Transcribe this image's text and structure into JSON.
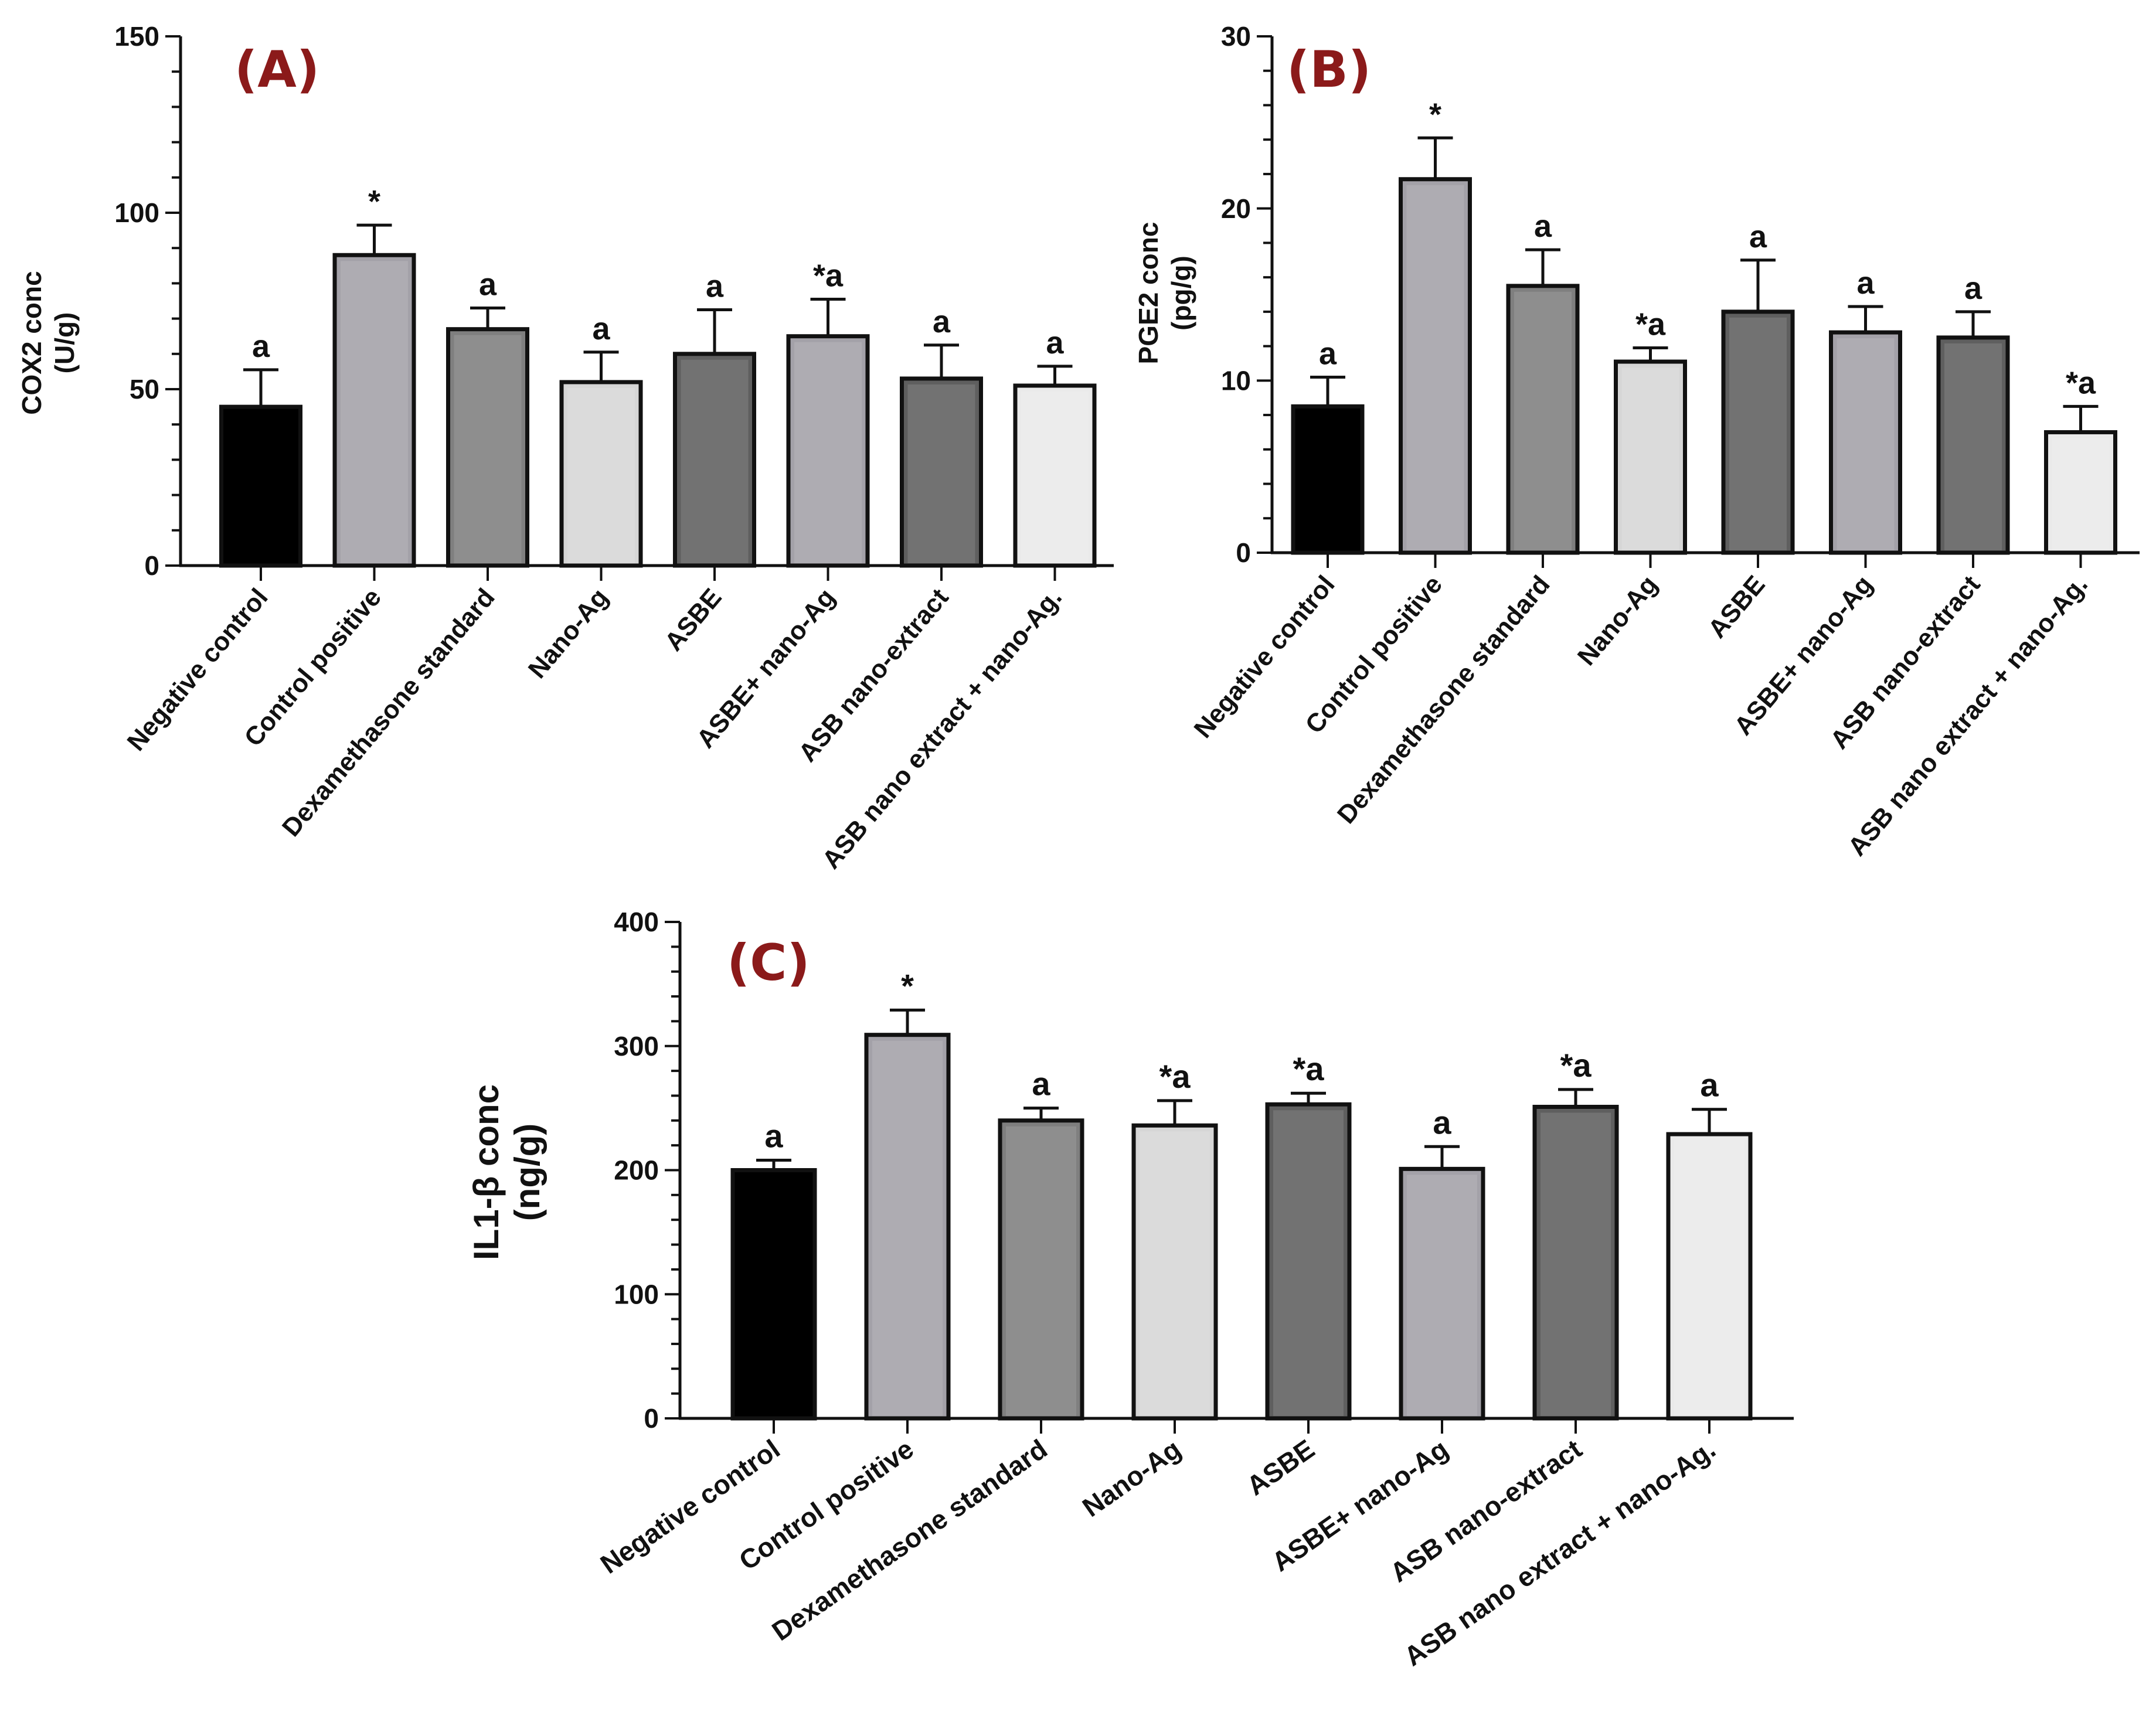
{
  "figure": {
    "charts": [
      {
        "id": "A",
        "panel_label": "(A)",
        "ylabel_line1": "COX2 conc",
        "ylabel_line2": "(U/g)"
      },
      {
        "id": "B",
        "panel_label": "(B)",
        "ylabel_line1": "PGE2 conc",
        "ylabel_line2": "(pg/g)"
      },
      {
        "id": "C",
        "panel_label": "(C)",
        "ylabel_line1": "IL1-β conc",
        "ylabel_line2": "(ng/g)"
      }
    ]
  },
  "colors": {
    "black": "#000000",
    "light_purple_grey": "#a3a1a8",
    "mid_grey": "#7f7f7f",
    "light_grey": "#d6d6d6",
    "dark_grey": "#5f5f5f",
    "very_light_grey": "#eaeaea",
    "panel_label": "#8b1a1a"
  },
  "chart_data": [
    {
      "id": "A",
      "type": "bar",
      "title": "(A)",
      "ylabel": "COX2 conc (U/g)",
      "xlabel": "",
      "ylim": [
        0,
        150
      ],
      "yticks": [
        0,
        50,
        100,
        150
      ],
      "categories": [
        "Negative control",
        "Control positive",
        "Dexamethasone standard",
        "Nano-Ag",
        "ASBE",
        "ASBE+ nano-Ag",
        "ASB nano-extract",
        "ASB nano extract + nano-Ag."
      ],
      "values": [
        45,
        88,
        67,
        52,
        60,
        65,
        53,
        51
      ],
      "errors": [
        10.5,
        8.5,
        6,
        8.5,
        12.5,
        10.5,
        9.5,
        5.5
      ],
      "annotations": [
        "a",
        "*",
        "a",
        "a",
        "a",
        "*a",
        "a",
        "a"
      ],
      "bar_colors": [
        "#000000",
        "#a3a1a8",
        "#7f7f7f",
        "#d6d6d6",
        "#5f5f5f",
        "#a3a1a8",
        "#5f5f5f",
        "#eaeaea"
      ]
    },
    {
      "id": "B",
      "type": "bar",
      "title": "(B)",
      "ylabel": "PGE2 conc (pg/g)",
      "xlabel": "",
      "ylim": [
        0,
        30
      ],
      "yticks": [
        0,
        10,
        20,
        30
      ],
      "categories": [
        "Negative control",
        "Control positive",
        "Dexamethasone standard",
        "Nano-Ag",
        "ASBE",
        "ASBE+ nano-Ag",
        "ASB nano-extract",
        "ASB nano extract + nano-Ag."
      ],
      "values": [
        8.5,
        21.7,
        15.5,
        11.1,
        14.0,
        12.8,
        12.5,
        7.0
      ],
      "errors": [
        1.7,
        2.4,
        2.1,
        0.8,
        3.0,
        1.5,
        1.5,
        1.5
      ],
      "annotations": [
        "a",
        "*",
        "a",
        "*a",
        "a",
        "a",
        "a",
        "*a"
      ],
      "bar_colors": [
        "#000000",
        "#a3a1a8",
        "#7f7f7f",
        "#d6d6d6",
        "#5f5f5f",
        "#a3a1a8",
        "#5f5f5f",
        "#eaeaea"
      ]
    },
    {
      "id": "C",
      "type": "bar",
      "title": "(C)",
      "ylabel": "IL1-β conc (ng/g)",
      "xlabel": "",
      "ylim": [
        0,
        400
      ],
      "yticks": [
        0,
        100,
        200,
        300,
        400
      ],
      "categories": [
        "Negative control",
        "Control positive",
        "Dexamethasone standard",
        "Nano-Ag",
        "ASBE",
        "ASBE+ nano-Ag",
        "ASB nano-extract",
        "ASB nano extract + nano-Ag."
      ],
      "values": [
        200,
        309,
        240,
        236,
        253,
        201,
        251,
        229
      ],
      "errors": [
        8,
        20,
        10,
        20,
        9,
        18,
        14,
        20
      ],
      "annotations": [
        "a",
        "*",
        "a",
        "*a",
        "*a",
        "a",
        "*a",
        "a"
      ],
      "bar_colors": [
        "#000000",
        "#a3a1a8",
        "#7f7f7f",
        "#d6d6d6",
        "#5f5f5f",
        "#a3a1a8",
        "#5f5f5f",
        "#eaeaea"
      ]
    }
  ]
}
